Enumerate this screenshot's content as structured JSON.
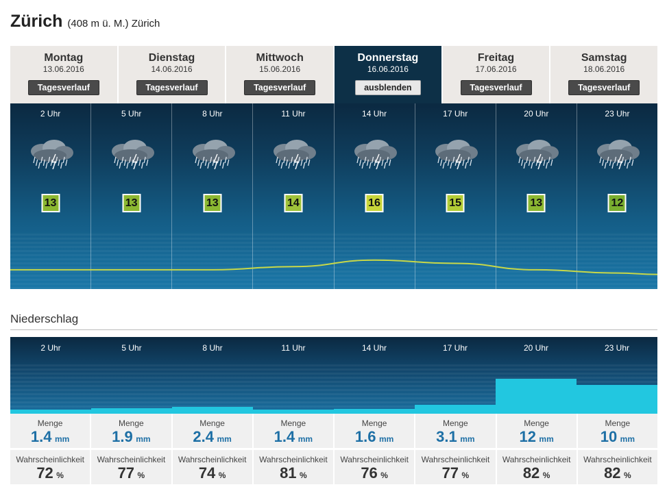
{
  "location": {
    "name": "Zürich",
    "subtitle": "(408 m ü. M.) Zürich"
  },
  "days": [
    {
      "name": "Montag",
      "date": "13.06.2016",
      "button": "Tagesverlauf",
      "active": false
    },
    {
      "name": "Dienstag",
      "date": "14.06.2016",
      "button": "Tagesverlauf",
      "active": false
    },
    {
      "name": "Mittwoch",
      "date": "15.06.2016",
      "button": "Tagesverlauf",
      "active": false
    },
    {
      "name": "Donnerstag",
      "date": "16.06.2016",
      "button": "ausblenden",
      "active": true
    },
    {
      "name": "Freitag",
      "date": "17.06.2016",
      "button": "Tagesverlauf",
      "active": false
    },
    {
      "name": "Samstag",
      "date": "18.06.2016",
      "button": "Tagesverlauf",
      "active": false
    }
  ],
  "hours": [
    {
      "hour": "2 Uhr",
      "temp": "13",
      "temp_color": "#8cb832",
      "icon": "rain-cloud-icon"
    },
    {
      "hour": "5 Uhr",
      "temp": "13",
      "temp_color": "#8cb832",
      "icon": "rain-cloud-icon"
    },
    {
      "hour": "8 Uhr",
      "temp": "13",
      "temp_color": "#8cb832",
      "icon": "rain-cloud-icon"
    },
    {
      "hour": "11 Uhr",
      "temp": "14",
      "temp_color": "#9fc23a",
      "icon": "rain-cloud-icon"
    },
    {
      "hour": "14 Uhr",
      "temp": "16",
      "temp_color": "#c8d53a",
      "icon": "rain-cloud-icon"
    },
    {
      "hour": "17 Uhr",
      "temp": "15",
      "temp_color": "#b2cc36",
      "icon": "rain-cloud-icon"
    },
    {
      "hour": "20 Uhr",
      "temp": "13",
      "temp_color": "#8cb832",
      "icon": "rain-cloud-icon"
    },
    {
      "hour": "23 Uhr",
      "temp": "12",
      "temp_color": "#7aae30",
      "icon": "rain-cloud-icon"
    }
  ],
  "precipitation": {
    "section_title": "Niederschlag",
    "amount_label": "Menge",
    "amount_unit": "mm",
    "probability_label": "Wahrscheinlichkeit",
    "probability_unit": "%",
    "bar_color": "#22c7e0",
    "items": [
      {
        "hour": "2 Uhr",
        "amount": "1.4",
        "probability": "72"
      },
      {
        "hour": "5 Uhr",
        "amount": "1.9",
        "probability": "77"
      },
      {
        "hour": "8 Uhr",
        "amount": "2.4",
        "probability": "74"
      },
      {
        "hour": "11 Uhr",
        "amount": "1.4",
        "probability": "81"
      },
      {
        "hour": "14 Uhr",
        "amount": "1.6",
        "probability": "76"
      },
      {
        "hour": "17 Uhr",
        "amount": "3.1",
        "probability": "77"
      },
      {
        "hour": "20 Uhr",
        "amount": "12",
        "probability": "82"
      },
      {
        "hour": "23 Uhr",
        "amount": "10",
        "probability": "82"
      }
    ]
  }
}
